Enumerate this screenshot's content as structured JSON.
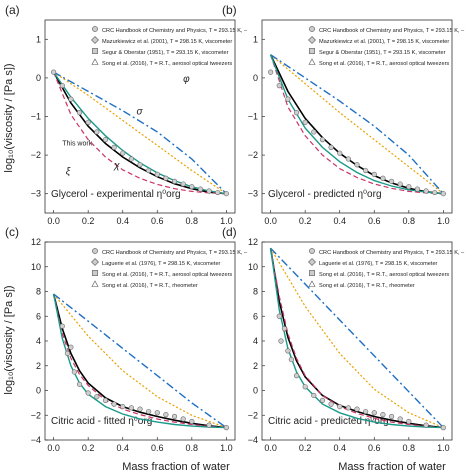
{
  "figure": {
    "xlabel": "Mass fraction of water",
    "ylabel_top": "log₁₀(viscosity / [Pa s])",
    "ylabel_bottom": "log₁₀(viscosity / [Pa s])"
  },
  "chart_data": [
    {
      "panel": "(a)",
      "type": "line",
      "caption": "Glycerol - experimental η⁰org",
      "xlim": [
        -0.05,
        1.05
      ],
      "ylim": [
        -3.5,
        1.5
      ],
      "xticks": [
        "0.0",
        "0.2",
        "0.4",
        "0.6",
        "0.8",
        "1.0"
      ],
      "yticks": [
        1,
        0,
        -1,
        -2,
        -3
      ],
      "legend": [
        "CRC Handbook of Chemistry and Physics, T = 293.15 K, –",
        "Mazurkiewicz et al. (2001), T = 298.15 K, viscometer",
        "Segur & Oberstar (1951), T = 293.15 K, viscometer",
        "Song et al. (2016), T = R.T., aerosol optical tweezers"
      ],
      "annotations": [
        "This work",
        "σ",
        "φ",
        "ξ",
        "χ"
      ],
      "series": [
        {
          "name": "This work",
          "color": "#000000",
          "x": [
            0,
            0.1,
            0.2,
            0.3,
            0.4,
            0.5,
            0.6,
            0.7,
            0.8,
            0.9,
            1.0
          ],
          "y": [
            0.15,
            -0.65,
            -1.25,
            -1.7,
            -2.05,
            -2.33,
            -2.56,
            -2.74,
            -2.87,
            -2.96,
            -3.0
          ]
        },
        {
          "name": "σ",
          "color": "#e8a100",
          "x": [
            0,
            0.2,
            0.4,
            0.6,
            0.8,
            1.0
          ],
          "y": [
            0.15,
            -0.45,
            -1.1,
            -1.75,
            -2.4,
            -3.0
          ]
        },
        {
          "name": "φ",
          "color": "#1f6fc4",
          "x": [
            0,
            0.2,
            0.4,
            0.6,
            0.8,
            1.0
          ],
          "y": [
            0.15,
            -0.35,
            -0.85,
            -1.4,
            -2.1,
            -3.0
          ]
        },
        {
          "name": "ξ",
          "color": "#cc3366",
          "x": [
            0,
            0.1,
            0.2,
            0.3,
            0.4,
            0.5,
            0.6,
            0.7,
            0.8,
            0.9,
            1.0
          ],
          "y": [
            0.15,
            -0.95,
            -1.6,
            -2.05,
            -2.38,
            -2.6,
            -2.76,
            -2.87,
            -2.94,
            -2.98,
            -3.0
          ]
        },
        {
          "name": "χ",
          "color": "#1a9a8a",
          "x": [
            0,
            0.1,
            0.2,
            0.3,
            0.4,
            0.5,
            0.6,
            0.7,
            0.8,
            0.9,
            1.0
          ],
          "y": [
            0.15,
            -0.5,
            -1.05,
            -1.5,
            -1.88,
            -2.2,
            -2.46,
            -2.66,
            -2.82,
            -2.93,
            -3.0
          ]
        }
      ],
      "points": [
        {
          "x": 0.0,
          "y": 0.15
        },
        {
          "x": 0.05,
          "y": -0.2
        },
        {
          "x": 0.1,
          "y": -0.55
        },
        {
          "x": 0.15,
          "y": -0.9
        },
        {
          "x": 0.2,
          "y": -1.15
        },
        {
          "x": 0.25,
          "y": -1.4
        },
        {
          "x": 0.3,
          "y": -1.6
        },
        {
          "x": 0.35,
          "y": -1.8
        },
        {
          "x": 0.4,
          "y": -1.95
        },
        {
          "x": 0.45,
          "y": -2.1
        },
        {
          "x": 0.5,
          "y": -2.25
        },
        {
          "x": 0.55,
          "y": -2.4
        },
        {
          "x": 0.6,
          "y": -2.5
        },
        {
          "x": 0.65,
          "y": -2.6
        },
        {
          "x": 0.7,
          "y": -2.68
        },
        {
          "x": 0.75,
          "y": -2.75
        },
        {
          "x": 0.8,
          "y": -2.82
        },
        {
          "x": 0.85,
          "y": -2.88
        },
        {
          "x": 0.9,
          "y": -2.93
        },
        {
          "x": 0.95,
          "y": -2.97
        },
        {
          "x": 1.0,
          "y": -3.0
        }
      ]
    },
    {
      "panel": "(b)",
      "type": "line",
      "caption": "Glycerol - predicted η⁰org",
      "xlim": [
        -0.05,
        1.05
      ],
      "ylim": [
        -3.5,
        1.5
      ],
      "xticks": [
        "0.0",
        "0.2",
        "0.4",
        "0.6",
        "0.8",
        "1.0"
      ],
      "yticks": [
        1,
        0,
        -1,
        -2,
        -3
      ],
      "legend": [
        "CRC Handbook of Chemistry and Physics, T = 293.15 K, –",
        "Mazurkiewicz et al. (2001), T = 298.15 K, viscometer",
        "Segur & Oberstar (1951), T = 293.15 K, viscometer",
        "Song et al. (2016), T = R.T., aerosol optical tweezers"
      ],
      "series": [
        {
          "name": "This work",
          "color": "#000000",
          "x": [
            0,
            0.1,
            0.2,
            0.3,
            0.4,
            0.5,
            0.6,
            0.7,
            0.8,
            0.9,
            1.0
          ],
          "y": [
            0.6,
            -0.35,
            -1.05,
            -1.55,
            -1.95,
            -2.27,
            -2.53,
            -2.72,
            -2.86,
            -2.95,
            -3.0
          ]
        },
        {
          "name": "σ",
          "color": "#e8a100",
          "x": [
            0,
            0.2,
            0.4,
            0.6,
            0.8,
            1.0
          ],
          "y": [
            0.6,
            -0.15,
            -0.9,
            -1.6,
            -2.3,
            -3.0
          ]
        },
        {
          "name": "φ",
          "color": "#1f6fc4",
          "x": [
            0,
            0.2,
            0.4,
            0.6,
            0.8,
            1.0
          ],
          "y": [
            0.6,
            0.0,
            -0.6,
            -1.25,
            -2.0,
            -3.0
          ]
        },
        {
          "name": "ξ",
          "color": "#cc3366",
          "x": [
            0,
            0.1,
            0.2,
            0.3,
            0.4,
            0.5,
            0.6,
            0.7,
            0.8,
            0.9,
            1.0
          ],
          "y": [
            0.6,
            -0.75,
            -1.5,
            -2.0,
            -2.35,
            -2.58,
            -2.75,
            -2.86,
            -2.94,
            -2.98,
            -3.0
          ]
        },
        {
          "name": "χ",
          "color": "#1a9a8a",
          "x": [
            0,
            0.1,
            0.2,
            0.3,
            0.4,
            0.5,
            0.6,
            0.7,
            0.8,
            0.9,
            1.0
          ],
          "y": [
            0.6,
            -0.55,
            -1.3,
            -1.8,
            -2.17,
            -2.45,
            -2.66,
            -2.8,
            -2.9,
            -2.96,
            -3.0
          ]
        }
      ],
      "points": [
        {
          "x": 0.0,
          "y": 0.15
        },
        {
          "x": 0.05,
          "y": -0.2
        },
        {
          "x": 0.1,
          "y": -0.55
        },
        {
          "x": 0.15,
          "y": -0.9
        },
        {
          "x": 0.2,
          "y": -1.15
        },
        {
          "x": 0.25,
          "y": -1.4
        },
        {
          "x": 0.3,
          "y": -1.6
        },
        {
          "x": 0.35,
          "y": -1.8
        },
        {
          "x": 0.4,
          "y": -1.95
        },
        {
          "x": 0.45,
          "y": -2.1
        },
        {
          "x": 0.5,
          "y": -2.25
        },
        {
          "x": 0.55,
          "y": -2.4
        },
        {
          "x": 0.6,
          "y": -2.5
        },
        {
          "x": 0.65,
          "y": -2.6
        },
        {
          "x": 0.7,
          "y": -2.68
        },
        {
          "x": 0.75,
          "y": -2.75
        },
        {
          "x": 0.8,
          "y": -2.82
        },
        {
          "x": 0.85,
          "y": -2.88
        },
        {
          "x": 0.9,
          "y": -2.93
        },
        {
          "x": 0.95,
          "y": -2.97
        },
        {
          "x": 1.0,
          "y": -3.0
        }
      ]
    },
    {
      "panel": "(c)",
      "type": "line",
      "caption": "Citric acid - fitted η⁰org",
      "xlim": [
        -0.05,
        1.05
      ],
      "ylim": [
        -4,
        12
      ],
      "xticks": [
        "0.0",
        "0.2",
        "0.4",
        "0.6",
        "0.8",
        "1.0"
      ],
      "yticks": [
        12,
        10,
        8,
        6,
        4,
        2,
        0,
        -2,
        -4
      ],
      "legend": [
        "CRC Handbook of Chemistry and Physics, T = 293.15 K, –",
        "Laguerie et al. (1976), T = 298.15 K, viscometer",
        "Song et al. (2016), T = R.T., aerosol optical tweezers",
        "Song et al. (2016), T = R.T., rheometer"
      ],
      "series": [
        {
          "name": "This work",
          "color": "#000000",
          "x": [
            0,
            0.05,
            0.1,
            0.15,
            0.2,
            0.3,
            0.4,
            0.5,
            0.6,
            0.7,
            0.8,
            0.9,
            1.0
          ],
          "y": [
            7.8,
            5.0,
            3.0,
            1.6,
            0.6,
            -0.6,
            -1.3,
            -1.75,
            -2.1,
            -2.4,
            -2.65,
            -2.85,
            -3.0
          ]
        },
        {
          "name": "σ",
          "color": "#e8a100",
          "x": [
            0,
            0.2,
            0.4,
            0.6,
            0.8,
            1.0
          ],
          "y": [
            7.8,
            4.4,
            1.6,
            -0.5,
            -2.0,
            -3.0
          ]
        },
        {
          "name": "φ",
          "color": "#1f6fc4",
          "x": [
            0,
            0.2,
            0.4,
            0.6,
            0.8,
            1.0
          ],
          "y": [
            7.8,
            5.6,
            3.4,
            1.2,
            -1.0,
            -3.0
          ]
        },
        {
          "name": "ξ",
          "color": "#cc3366",
          "x": [
            0,
            0.05,
            0.1,
            0.15,
            0.2,
            0.3,
            0.4,
            0.5,
            0.6,
            0.7,
            0.8,
            0.9,
            1.0
          ],
          "y": [
            7.8,
            4.6,
            2.6,
            1.3,
            0.4,
            -0.8,
            -1.5,
            -1.95,
            -2.3,
            -2.55,
            -2.75,
            -2.9,
            -3.0
          ]
        },
        {
          "name": "χ",
          "color": "#1a9a8a",
          "x": [
            0,
            0.05,
            0.1,
            0.15,
            0.2,
            0.3,
            0.4,
            0.5,
            0.6,
            0.7,
            0.8,
            0.9,
            1.0
          ],
          "y": [
            7.8,
            4.2,
            2.0,
            0.6,
            -0.3,
            -1.3,
            -1.9,
            -2.3,
            -2.55,
            -2.75,
            -2.88,
            -2.96,
            -3.0
          ]
        }
      ],
      "points": [
        {
          "x": 0.05,
          "y": 5.2
        },
        {
          "x": 0.08,
          "y": 3.0
        },
        {
          "x": 0.1,
          "y": 3.5
        },
        {
          "x": 0.12,
          "y": 1.5
        },
        {
          "x": 0.15,
          "y": 0.5
        },
        {
          "x": 0.2,
          "y": -0.2
        },
        {
          "x": 0.25,
          "y": -0.5
        },
        {
          "x": 0.3,
          "y": -0.8
        },
        {
          "x": 0.35,
          "y": -1.1
        },
        {
          "x": 0.4,
          "y": -1.3
        },
        {
          "x": 0.45,
          "y": -1.4
        },
        {
          "x": 0.5,
          "y": -1.5
        },
        {
          "x": 0.55,
          "y": -1.7
        },
        {
          "x": 0.6,
          "y": -1.8
        },
        {
          "x": 0.65,
          "y": -1.95
        },
        {
          "x": 0.7,
          "y": -2.1
        },
        {
          "x": 0.75,
          "y": -2.3
        },
        {
          "x": 0.8,
          "y": -2.5
        },
        {
          "x": 0.9,
          "y": -2.8
        },
        {
          "x": 1.0,
          "y": -3.0
        }
      ]
    },
    {
      "panel": "(d)",
      "type": "line",
      "caption": "Citric acid - predicted η⁰org",
      "xlim": [
        -0.05,
        1.05
      ],
      "ylim": [
        -4,
        12
      ],
      "xticks": [
        "0.0",
        "0.2",
        "0.4",
        "0.6",
        "0.8",
        "1.0"
      ],
      "yticks": [
        12,
        10,
        8,
        6,
        4,
        2,
        0,
        -2,
        -4
      ],
      "legend": [
        "CRC Handbook of Chemistry and Physics, T = 293.15 K, –",
        "Laguerie et al. (1976), T = 298.15 K, viscometer",
        "Song et al. (2016), T = R.T., aerosol optical tweezers",
        "Song et al. (2016), T = R.T., rheometer"
      ],
      "series": [
        {
          "name": "This work",
          "color": "#000000",
          "x": [
            0,
            0.05,
            0.1,
            0.15,
            0.2,
            0.3,
            0.4,
            0.5,
            0.6,
            0.7,
            0.8,
            0.9,
            1.0
          ],
          "y": [
            11.5,
            7.2,
            4.3,
            2.4,
            1.1,
            -0.4,
            -1.2,
            -1.7,
            -2.1,
            -2.4,
            -2.65,
            -2.85,
            -3.0
          ]
        },
        {
          "name": "σ",
          "color": "#e8a100",
          "x": [
            0,
            0.2,
            0.4,
            0.6,
            0.8,
            1.0
          ],
          "y": [
            11.5,
            6.8,
            3.0,
            0.1,
            -1.8,
            -3.0
          ]
        },
        {
          "name": "φ",
          "color": "#1f6fc4",
          "x": [
            0,
            0.2,
            0.4,
            0.6,
            0.8,
            1.0
          ],
          "y": [
            11.5,
            8.6,
            5.7,
            2.8,
            -0.1,
            -3.0
          ]
        },
        {
          "name": "ξ",
          "color": "#cc3366",
          "x": [
            0,
            0.05,
            0.1,
            0.15,
            0.2,
            0.3,
            0.4,
            0.5,
            0.6,
            0.7,
            0.8,
            0.9,
            1.0
          ],
          "y": [
            11.5,
            7.6,
            4.6,
            2.6,
            1.2,
            -0.4,
            -1.3,
            -1.85,
            -2.25,
            -2.55,
            -2.75,
            -2.9,
            -3.0
          ]
        },
        {
          "name": "χ",
          "color": "#1a9a8a",
          "x": [
            0,
            0.05,
            0.1,
            0.15,
            0.2,
            0.3,
            0.4,
            0.5,
            0.6,
            0.7,
            0.8,
            0.9,
            1.0
          ],
          "y": [
            11.5,
            6.5,
            3.4,
            1.5,
            0.3,
            -1.1,
            -1.8,
            -2.25,
            -2.55,
            -2.75,
            -2.88,
            -2.96,
            -3.0
          ]
        }
      ],
      "points": [
        {
          "x": 0.05,
          "y": 6.0
        },
        {
          "x": 0.06,
          "y": 4.0
        },
        {
          "x": 0.08,
          "y": 5.0
        },
        {
          "x": 0.1,
          "y": 3.2
        },
        {
          "x": 0.12,
          "y": 2.5
        },
        {
          "x": 0.15,
          "y": 1.2
        },
        {
          "x": 0.2,
          "y": 0.3
        },
        {
          "x": 0.25,
          "y": -0.4
        },
        {
          "x": 0.3,
          "y": -0.8
        },
        {
          "x": 0.35,
          "y": -1.1
        },
        {
          "x": 0.4,
          "y": -1.3
        },
        {
          "x": 0.45,
          "y": -1.4
        },
        {
          "x": 0.5,
          "y": -1.5
        },
        {
          "x": 0.55,
          "y": -1.7
        },
        {
          "x": 0.6,
          "y": -1.8
        },
        {
          "x": 0.65,
          "y": -1.95
        },
        {
          "x": 0.7,
          "y": -2.1
        },
        {
          "x": 0.75,
          "y": -2.3
        },
        {
          "x": 0.8,
          "y": -2.5
        },
        {
          "x": 0.9,
          "y": -2.8
        },
        {
          "x": 1.0,
          "y": -3.0
        }
      ]
    }
  ]
}
